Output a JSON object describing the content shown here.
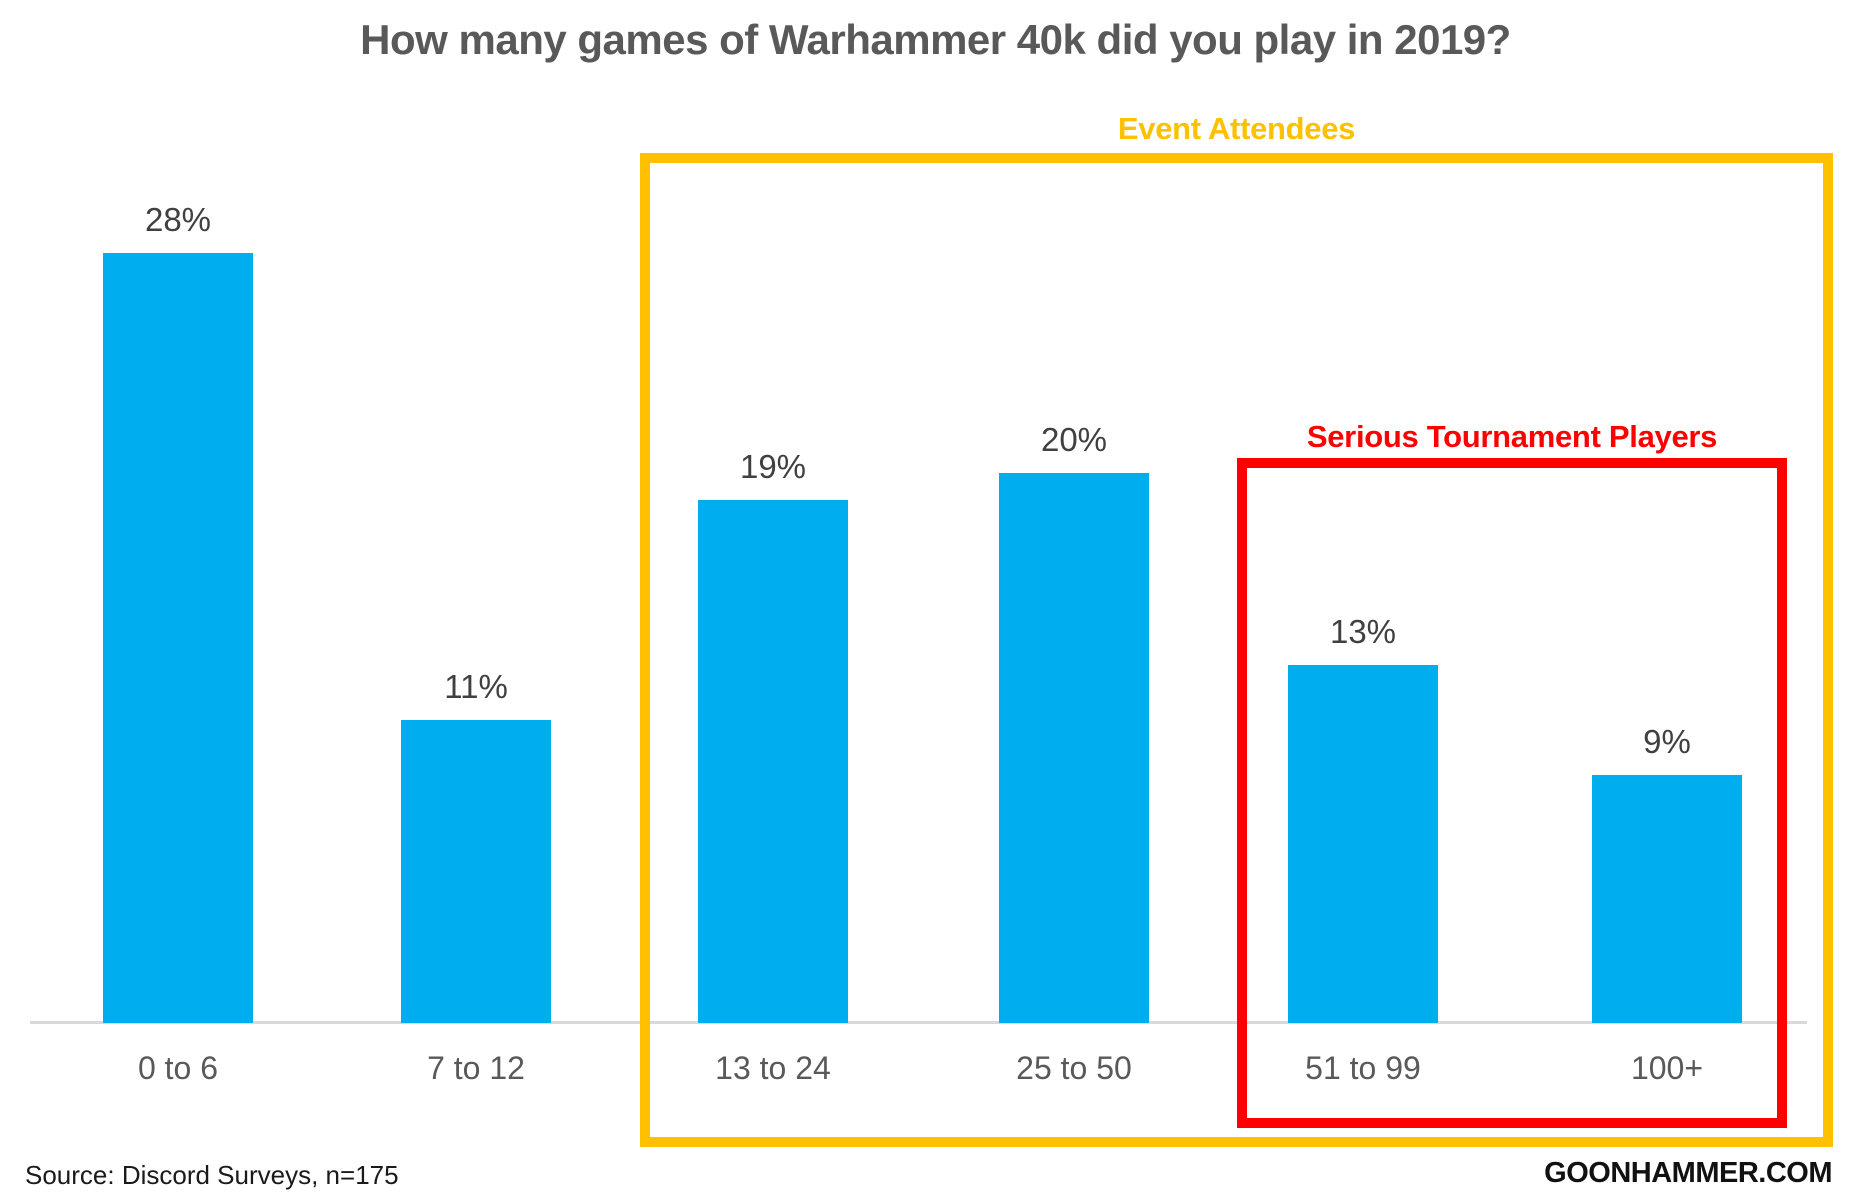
{
  "chart_data": {
    "type": "bar",
    "title": "How many games of Warhammer 40k did you play in 2019?",
    "categories": [
      "0 to 6",
      "7 to 12",
      "13 to 24",
      "25 to 50",
      "51 to 99",
      "100+"
    ],
    "values": [
      28,
      11,
      19,
      20,
      13,
      9
    ],
    "value_labels": [
      "28%",
      "11%",
      "19%",
      "20%",
      "13%",
      "9%"
    ],
    "ylabel": "",
    "xlabel": "",
    "ylim": [
      0,
      30
    ],
    "grid": false,
    "legend": false,
    "bar_color": "#00AEEF",
    "axis_line_color": "#D9D9D9",
    "title_color": "#595959",
    "value_label_color": "#404040",
    "category_label_color": "#595959",
    "annotations": [
      {
        "label": "Event Attendees",
        "color": "#FFC000",
        "covers_categories": [
          "13 to 24",
          "25 to 50",
          "51 to 99",
          "100+"
        ]
      },
      {
        "label": "Serious Tournament Players",
        "color": "#FF0000",
        "covers_categories": [
          "51 to 99",
          "100+"
        ]
      }
    ]
  },
  "footer": {
    "source": "Source: Discord Surveys, n=175",
    "brand": "GOONHAMMER.COM"
  }
}
